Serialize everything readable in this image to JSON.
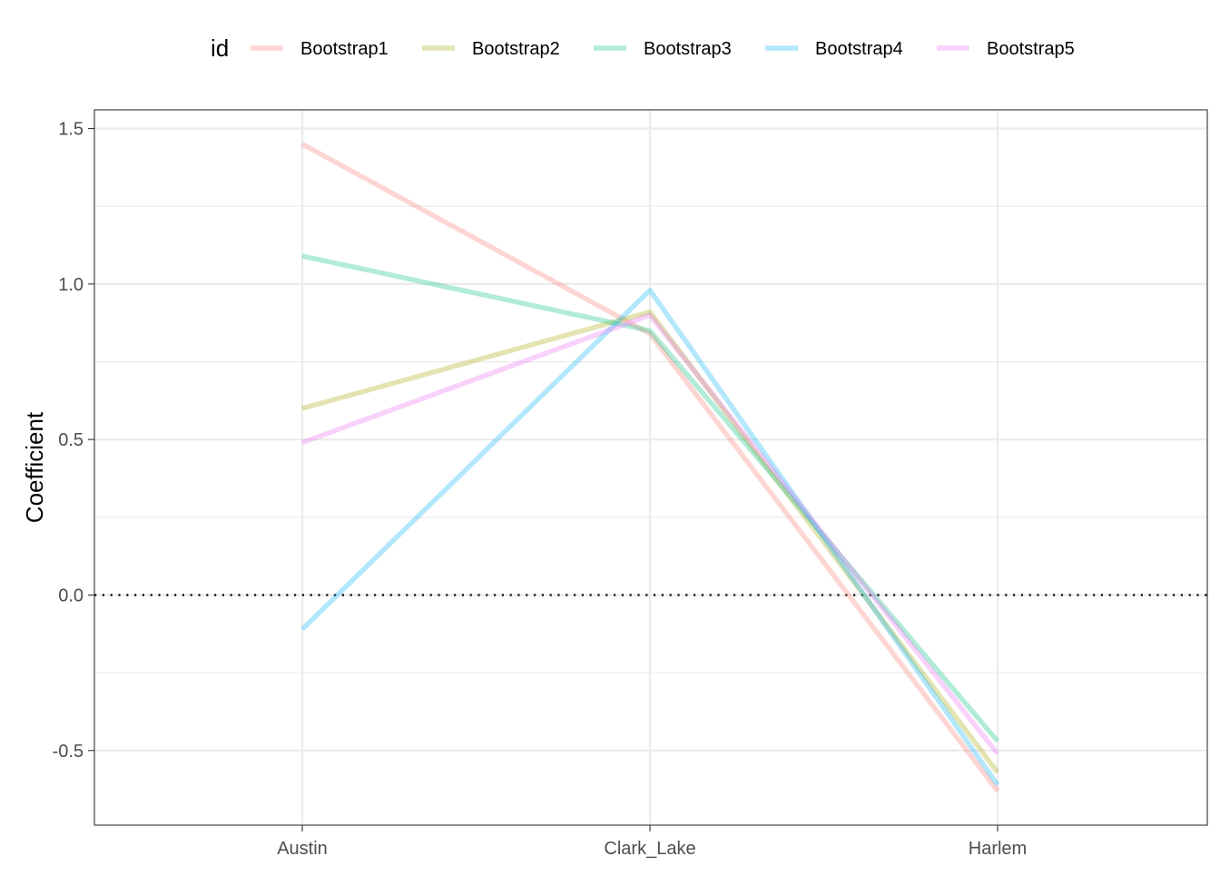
{
  "chart_data": {
    "type": "line",
    "title": "",
    "xlabel": "",
    "ylabel": "Coefficient",
    "categories": [
      "Austin",
      "Clark_Lake",
      "Harlem"
    ],
    "ylim": [
      -0.74,
      1.56
    ],
    "y_ticks": [
      -0.5,
      0.0,
      0.5,
      1.0,
      1.5
    ],
    "y_tick_labels": [
      "-0.5",
      "0.0",
      "0.5",
      "1.0",
      "1.5"
    ],
    "grid": true,
    "reference_line": {
      "y": 0,
      "style": "dotted",
      "color": "#000000"
    },
    "legend": {
      "title": "id",
      "position": "top"
    },
    "series": [
      {
        "name": "Bootstrap1",
        "color": "#F8766D",
        "values": [
          1.45,
          0.84,
          -0.63
        ]
      },
      {
        "name": "Bootstrap2",
        "color": "#A3A500",
        "values": [
          0.6,
          0.91,
          -0.57
        ]
      },
      {
        "name": "Bootstrap3",
        "color": "#00BF7D",
        "values": [
          1.09,
          0.85,
          -0.47
        ]
      },
      {
        "name": "Bootstrap4",
        "color": "#00B0F6",
        "values": [
          -0.11,
          0.98,
          -0.61
        ]
      },
      {
        "name": "Bootstrap5",
        "color": "#E76BF3",
        "values": [
          0.49,
          0.9,
          -0.51
        ]
      }
    ]
  }
}
